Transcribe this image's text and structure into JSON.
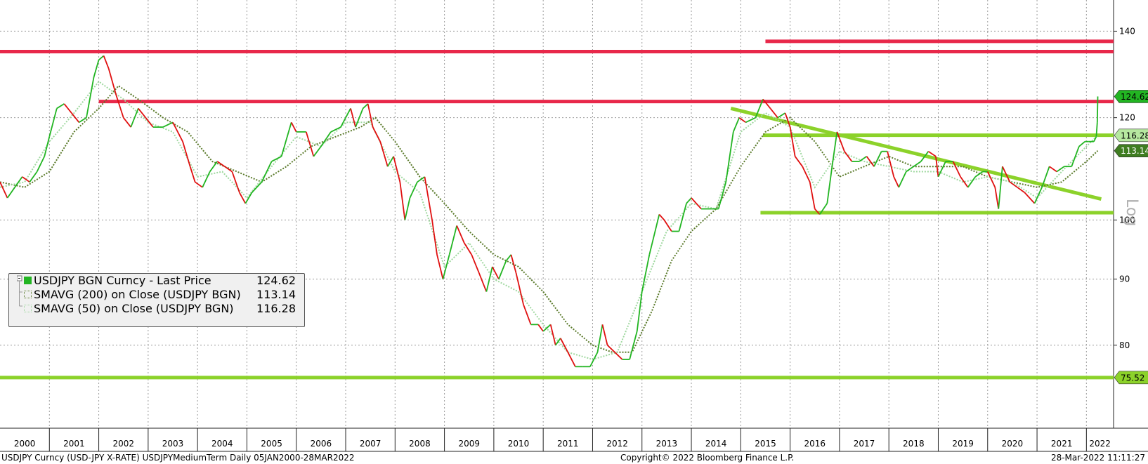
{
  "chart_data": {
    "type": "line",
    "title": "",
    "xlabel": "",
    "ylabel": "",
    "scale": "log",
    "grid": true,
    "x_ticks": [
      "2000",
      "2001",
      "2002",
      "2003",
      "2004",
      "2005",
      "2006",
      "2007",
      "2008",
      "2009",
      "2010",
      "2011",
      "2012",
      "2013",
      "2014",
      "2015",
      "2016",
      "2017",
      "2018",
      "2019",
      "2020",
      "2021",
      "2022"
    ],
    "y_ticks": [
      80,
      90,
      100,
      120,
      140
    ],
    "ylim": [
      69,
      148
    ],
    "xlim": [
      2000.0,
      2022.55
    ],
    "axis_scale_label": "Log",
    "series": [
      {
        "name": "USDJPY BGN Curncy - Last Price",
        "color": "#22b522",
        "last_value": 124.62,
        "points": [
          [
            2000.0,
            107
          ],
          [
            2000.15,
            104
          ],
          [
            2000.3,
            106
          ],
          [
            2000.45,
            108
          ],
          [
            2000.6,
            107
          ],
          [
            2000.75,
            109
          ],
          [
            2000.9,
            112
          ],
          [
            2001.0,
            116
          ],
          [
            2001.15,
            122
          ],
          [
            2001.3,
            123
          ],
          [
            2001.45,
            121
          ],
          [
            2001.6,
            119
          ],
          [
            2001.75,
            120
          ],
          [
            2001.9,
            129
          ],
          [
            2002.0,
            133
          ],
          [
            2002.1,
            134
          ],
          [
            2002.2,
            131
          ],
          [
            2002.35,
            125
          ],
          [
            2002.5,
            120
          ],
          [
            2002.65,
            118
          ],
          [
            2002.8,
            122
          ],
          [
            2002.95,
            120
          ],
          [
            2003.1,
            118
          ],
          [
            2003.3,
            118
          ],
          [
            2003.5,
            119
          ],
          [
            2003.7,
            115
          ],
          [
            2003.85,
            110
          ],
          [
            2003.95,
            107
          ],
          [
            2004.1,
            106
          ],
          [
            2004.25,
            109
          ],
          [
            2004.4,
            111
          ],
          [
            2004.55,
            110
          ],
          [
            2004.7,
            109
          ],
          [
            2004.85,
            105
          ],
          [
            2004.97,
            103
          ],
          [
            2005.1,
            105
          ],
          [
            2005.3,
            107
          ],
          [
            2005.5,
            111
          ],
          [
            2005.7,
            112
          ],
          [
            2005.9,
            119
          ],
          [
            2006.0,
            117
          ],
          [
            2006.2,
            117
          ],
          [
            2006.35,
            112
          ],
          [
            2006.5,
            114
          ],
          [
            2006.7,
            117
          ],
          [
            2006.9,
            118
          ],
          [
            2007.0,
            120
          ],
          [
            2007.1,
            122
          ],
          [
            2007.2,
            118
          ],
          [
            2007.35,
            122
          ],
          [
            2007.45,
            123
          ],
          [
            2007.55,
            118
          ],
          [
            2007.7,
            115
          ],
          [
            2007.85,
            110
          ],
          [
            2007.97,
            112
          ],
          [
            2008.1,
            107
          ],
          [
            2008.2,
            100
          ],
          [
            2008.3,
            104
          ],
          [
            2008.45,
            107
          ],
          [
            2008.6,
            108
          ],
          [
            2008.75,
            100
          ],
          [
            2008.85,
            94
          ],
          [
            2008.97,
            90
          ],
          [
            2009.1,
            94
          ],
          [
            2009.25,
            99
          ],
          [
            2009.4,
            96
          ],
          [
            2009.55,
            94
          ],
          [
            2009.7,
            91
          ],
          [
            2009.85,
            88
          ],
          [
            2009.97,
            92
          ],
          [
            2010.1,
            90
          ],
          [
            2010.25,
            93
          ],
          [
            2010.35,
            94
          ],
          [
            2010.45,
            91
          ],
          [
            2010.6,
            86
          ],
          [
            2010.75,
            83
          ],
          [
            2010.9,
            83
          ],
          [
            2011.0,
            82
          ],
          [
            2011.15,
            83
          ],
          [
            2011.25,
            80
          ],
          [
            2011.35,
            81
          ],
          [
            2011.5,
            79
          ],
          [
            2011.65,
            77
          ],
          [
            2011.8,
            77
          ],
          [
            2011.95,
            77
          ],
          [
            2012.1,
            79
          ],
          [
            2012.2,
            83
          ],
          [
            2012.3,
            80
          ],
          [
            2012.45,
            79
          ],
          [
            2012.6,
            78
          ],
          [
            2012.75,
            78
          ],
          [
            2012.9,
            82
          ],
          [
            2013.0,
            88
          ],
          [
            2013.15,
            94
          ],
          [
            2013.35,
            101
          ],
          [
            2013.45,
            100
          ],
          [
            2013.6,
            98
          ],
          [
            2013.75,
            98
          ],
          [
            2013.9,
            103
          ],
          [
            2014.0,
            104
          ],
          [
            2014.2,
            102
          ],
          [
            2014.4,
            102
          ],
          [
            2014.55,
            102
          ],
          [
            2014.7,
            107
          ],
          [
            2014.85,
            117
          ],
          [
            2014.97,
            120
          ],
          [
            2015.1,
            119
          ],
          [
            2015.3,
            120
          ],
          [
            2015.45,
            124
          ],
          [
            2015.6,
            122
          ],
          [
            2015.75,
            120
          ],
          [
            2015.9,
            121
          ],
          [
            2016.0,
            118
          ],
          [
            2016.1,
            112
          ],
          [
            2016.25,
            110
          ],
          [
            2016.4,
            107
          ],
          [
            2016.5,
            102
          ],
          [
            2016.6,
            101
          ],
          [
            2016.75,
            103
          ],
          [
            2016.85,
            110
          ],
          [
            2016.95,
            117
          ],
          [
            2017.1,
            113
          ],
          [
            2017.25,
            111
          ],
          [
            2017.4,
            111
          ],
          [
            2017.55,
            112
          ],
          [
            2017.7,
            110
          ],
          [
            2017.85,
            113
          ],
          [
            2017.97,
            113
          ],
          [
            2018.1,
            108
          ],
          [
            2018.2,
            106
          ],
          [
            2018.35,
            109
          ],
          [
            2018.5,
            110
          ],
          [
            2018.65,
            111
          ],
          [
            2018.8,
            113
          ],
          [
            2018.95,
            112
          ],
          [
            2019.0,
            108
          ],
          [
            2019.15,
            111
          ],
          [
            2019.3,
            111
          ],
          [
            2019.45,
            108
          ],
          [
            2019.6,
            106
          ],
          [
            2019.75,
            108
          ],
          [
            2019.9,
            109
          ],
          [
            2020.0,
            109
          ],
          [
            2020.15,
            106
          ],
          [
            2020.22,
            102
          ],
          [
            2020.3,
            110
          ],
          [
            2020.45,
            107
          ],
          [
            2020.6,
            106
          ],
          [
            2020.75,
            105
          ],
          [
            2020.95,
            103
          ],
          [
            2021.1,
            106
          ],
          [
            2021.25,
            110
          ],
          [
            2021.4,
            109
          ],
          [
            2021.55,
            110
          ],
          [
            2021.7,
            110
          ],
          [
            2021.85,
            114
          ],
          [
            2021.97,
            115
          ],
          [
            2022.05,
            115
          ],
          [
            2022.15,
            115
          ],
          [
            2022.2,
            116
          ],
          [
            2022.22,
            119
          ],
          [
            2022.23,
            124.62
          ]
        ]
      },
      {
        "name": "SMAVG (200)  on Close (USDJPY BGN)",
        "color": "#5a7a2a",
        "style": "dotted",
        "last_value": 113.14,
        "points": [
          [
            2000.0,
            107
          ],
          [
            2000.5,
            106
          ],
          [
            2001.0,
            109
          ],
          [
            2001.5,
            117
          ],
          [
            2002.0,
            122
          ],
          [
            2002.4,
            127
          ],
          [
            2002.8,
            124
          ],
          [
            2003.3,
            120
          ],
          [
            2003.8,
            117
          ],
          [
            2004.3,
            111
          ],
          [
            2004.8,
            109
          ],
          [
            2005.3,
            107
          ],
          [
            2005.8,
            110
          ],
          [
            2006.3,
            114
          ],
          [
            2006.8,
            116
          ],
          [
            2007.3,
            118
          ],
          [
            2007.6,
            120
          ],
          [
            2008.0,
            115
          ],
          [
            2008.5,
            108
          ],
          [
            2009.0,
            103
          ],
          [
            2009.5,
            98
          ],
          [
            2010.0,
            94
          ],
          [
            2010.5,
            92
          ],
          [
            2011.0,
            88
          ],
          [
            2011.5,
            83
          ],
          [
            2012.0,
            80
          ],
          [
            2012.4,
            79
          ],
          [
            2012.8,
            79
          ],
          [
            2013.2,
            85
          ],
          [
            2013.6,
            93
          ],
          [
            2014.0,
            98
          ],
          [
            2014.5,
            102
          ],
          [
            2015.0,
            110
          ],
          [
            2015.5,
            117
          ],
          [
            2016.0,
            120
          ],
          [
            2016.5,
            115
          ],
          [
            2017.0,
            108
          ],
          [
            2017.5,
            110
          ],
          [
            2018.0,
            112
          ],
          [
            2018.5,
            110
          ],
          [
            2019.0,
            110
          ],
          [
            2019.5,
            110
          ],
          [
            2020.0,
            108
          ],
          [
            2020.5,
            107
          ],
          [
            2021.0,
            106
          ],
          [
            2021.5,
            107
          ],
          [
            2022.0,
            111
          ],
          [
            2022.23,
            113.14
          ]
        ]
      },
      {
        "name": "SMAVG (50)  on Close (USDJPY BGN)",
        "color": "#9fd89f",
        "style": "dotted",
        "last_value": 116.28,
        "points": [
          [
            2000.0,
            106
          ],
          [
            2000.5,
            107
          ],
          [
            2001.0,
            115
          ],
          [
            2001.5,
            121
          ],
          [
            2002.0,
            128
          ],
          [
            2002.5,
            124
          ],
          [
            2003.0,
            119
          ],
          [
            2003.5,
            117
          ],
          [
            2004.0,
            108
          ],
          [
            2004.5,
            109
          ],
          [
            2005.0,
            104
          ],
          [
            2005.5,
            110
          ],
          [
            2006.0,
            116
          ],
          [
            2006.5,
            114
          ],
          [
            2007.0,
            119
          ],
          [
            2007.5,
            119
          ],
          [
            2008.0,
            109
          ],
          [
            2008.5,
            105
          ],
          [
            2009.0,
            92
          ],
          [
            2009.5,
            96
          ],
          [
            2010.0,
            90
          ],
          [
            2010.5,
            88
          ],
          [
            2011.0,
            83
          ],
          [
            2011.5,
            79
          ],
          [
            2012.0,
            78
          ],
          [
            2012.5,
            79
          ],
          [
            2013.0,
            88
          ],
          [
            2013.5,
            98
          ],
          [
            2014.0,
            103
          ],
          [
            2014.5,
            102
          ],
          [
            2015.0,
            117
          ],
          [
            2015.5,
            121
          ],
          [
            2016.0,
            118
          ],
          [
            2016.5,
            106
          ],
          [
            2017.0,
            113
          ],
          [
            2017.5,
            111
          ],
          [
            2018.0,
            110
          ],
          [
            2018.5,
            109
          ],
          [
            2019.0,
            109
          ],
          [
            2019.5,
            107
          ],
          [
            2020.0,
            108
          ],
          [
            2020.5,
            107
          ],
          [
            2021.0,
            104
          ],
          [
            2021.5,
            109
          ],
          [
            2022.0,
            114
          ],
          [
            2022.23,
            116.28
          ]
        ]
      }
    ],
    "levels": [
      {
        "color": "#e8284a",
        "x0": 2000.0,
        "x1": 2022.55,
        "y": 135
      },
      {
        "color": "#e8284a",
        "x0": 2015.5,
        "x1": 2022.55,
        "y": 137.5
      },
      {
        "color": "#e8284a",
        "x0": 2002.0,
        "x1": 2022.55,
        "y": 123.5
      },
      {
        "color": "#8cd22a",
        "x0": 2015.45,
        "x1": 2022.55,
        "y": 116.3
      },
      {
        "color": "#8cd22a",
        "x0": 2015.4,
        "x1": 2022.55,
        "y": 101.3
      },
      {
        "color": "#8cd22a",
        "x0": 2000.0,
        "x1": 2022.55,
        "y": 75.52
      },
      {
        "color": "#8cd22a",
        "x0": 2014.8,
        "x1": 2022.3,
        "y": 122.0,
        "y_end": 103.8
      }
    ],
    "value_tags": [
      {
        "label": "124.62",
        "value": 124.62,
        "bg": "#22b522",
        "fg": "#000000"
      },
      {
        "label": "116.28",
        "value": 116.28,
        "bg": "#b6e8a0",
        "fg": "#000000"
      },
      {
        "label": "113.14",
        "value": 113.14,
        "bg": "#3f7d21",
        "fg": "#ffffff"
      },
      {
        "label": "75.52",
        "value": 75.52,
        "bg": "#8cd22a",
        "fg": "#000000"
      }
    ]
  },
  "legend": {
    "items": [
      {
        "label": "USDJPY BGN Curncy - Last Price",
        "value": "124.62"
      },
      {
        "label": "SMAVG (200)  on Close (USDJPY BGN)",
        "value": "113.14"
      },
      {
        "label": "SMAVG (50)  on Close (USDJPY BGN)",
        "value": "116.28"
      }
    ]
  },
  "footer": {
    "left": "USDJPY Curncy (USD-JPY X-RATE) USDJPYMediumTerm  Daily 05JAN2000-28MAR2022",
    "center": "Copyright© 2022 Bloomberg Finance L.P.",
    "right": "28-Mar-2022 11:11:27"
  }
}
